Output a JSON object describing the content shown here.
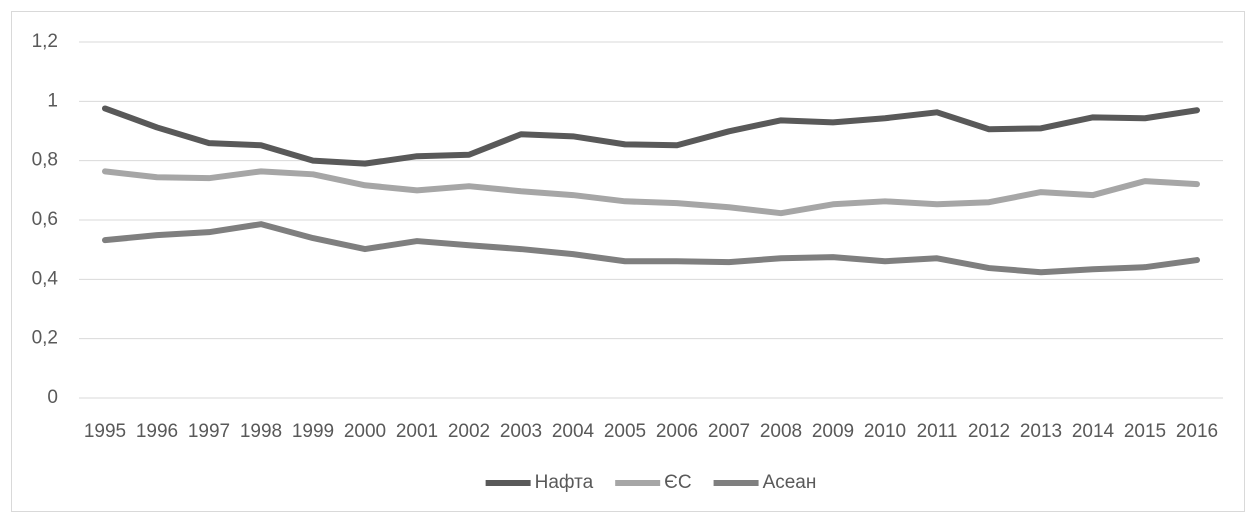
{
  "chart_data": {
    "type": "line",
    "categories": [
      "1995",
      "1996",
      "1997",
      "1998",
      "1999",
      "2000",
      "2001",
      "2002",
      "2003",
      "2004",
      "2005",
      "2006",
      "2007",
      "2008",
      "2009",
      "2010",
      "2011",
      "2012",
      "2013",
      "2014",
      "2015",
      "2016"
    ],
    "series": [
      {
        "name": "Нафта",
        "color": "#595959",
        "values": [
          0.976,
          0.912,
          0.859,
          0.852,
          0.8,
          0.79,
          0.815,
          0.82,
          0.889,
          0.882,
          0.855,
          0.852,
          0.899,
          0.936,
          0.929,
          0.943,
          0.963,
          0.906,
          0.909,
          0.946,
          0.943,
          0.97
        ]
      },
      {
        "name": "ЄС",
        "color": "#a6a6a6",
        "values": [
          0.764,
          0.744,
          0.741,
          0.764,
          0.754,
          0.717,
          0.7,
          0.714,
          0.697,
          0.684,
          0.663,
          0.657,
          0.643,
          0.623,
          0.653,
          0.663,
          0.653,
          0.66,
          0.694,
          0.684,
          0.731,
          0.721
        ]
      },
      {
        "name": "Асеан",
        "color": "#7f7f7f",
        "values": [
          0.532,
          0.549,
          0.559,
          0.586,
          0.539,
          0.502,
          0.529,
          0.515,
          0.502,
          0.485,
          0.461,
          0.461,
          0.458,
          0.471,
          0.475,
          0.461,
          0.471,
          0.438,
          0.424,
          0.434,
          0.441,
          0.465
        ]
      }
    ],
    "ylim": [
      0,
      1.2
    ],
    "yticks": [
      0,
      {
        "value": 0.2,
        "label": "0,2"
      },
      {
        "value": 0.4,
        "label": "0,4"
      },
      {
        "value": 0.6,
        "label": "0,6"
      },
      {
        "value": 0.8,
        "label": "0,8"
      },
      1,
      {
        "value": 1.2,
        "label": "1,2"
      }
    ],
    "grid": true,
    "legend": "bottom"
  }
}
